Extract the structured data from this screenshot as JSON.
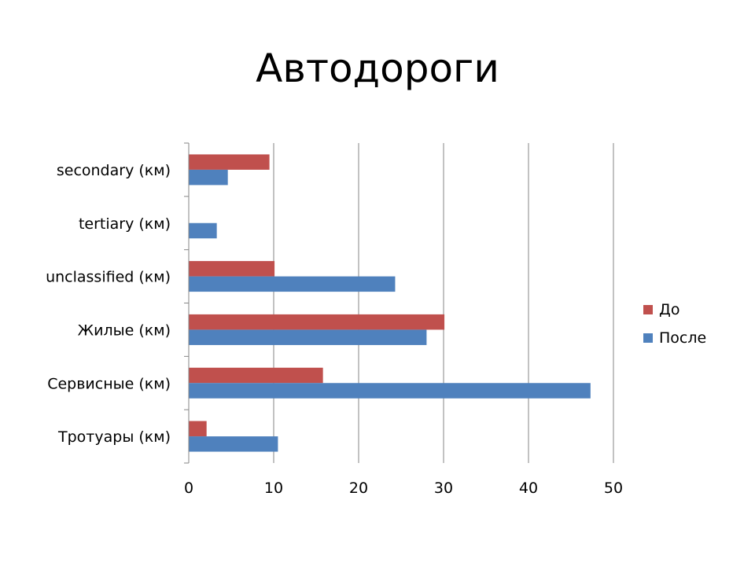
{
  "chart_data": {
    "type": "bar",
    "orientation": "horizontal",
    "title": "Автодороги",
    "categories": [
      "secondary (км)",
      "tertiary (км)",
      "unclassified (км)",
      "Жилые (км)",
      "Сервисные (км)",
      "Тротуары (км)"
    ],
    "series": [
      {
        "name": "До",
        "color": "#c0504d",
        "values": [
          9.5,
          0,
          10.1,
          30.1,
          15.8,
          2.1
        ]
      },
      {
        "name": "После",
        "color": "#4f81bd",
        "values": [
          4.6,
          3.3,
          24.3,
          28.0,
          47.3,
          10.5
        ]
      }
    ],
    "xlim": [
      0,
      50
    ],
    "xticks": [
      0,
      10,
      20,
      30,
      40,
      50
    ],
    "xlabel": "",
    "ylabel": "",
    "grid": true,
    "legend_position": "right"
  }
}
